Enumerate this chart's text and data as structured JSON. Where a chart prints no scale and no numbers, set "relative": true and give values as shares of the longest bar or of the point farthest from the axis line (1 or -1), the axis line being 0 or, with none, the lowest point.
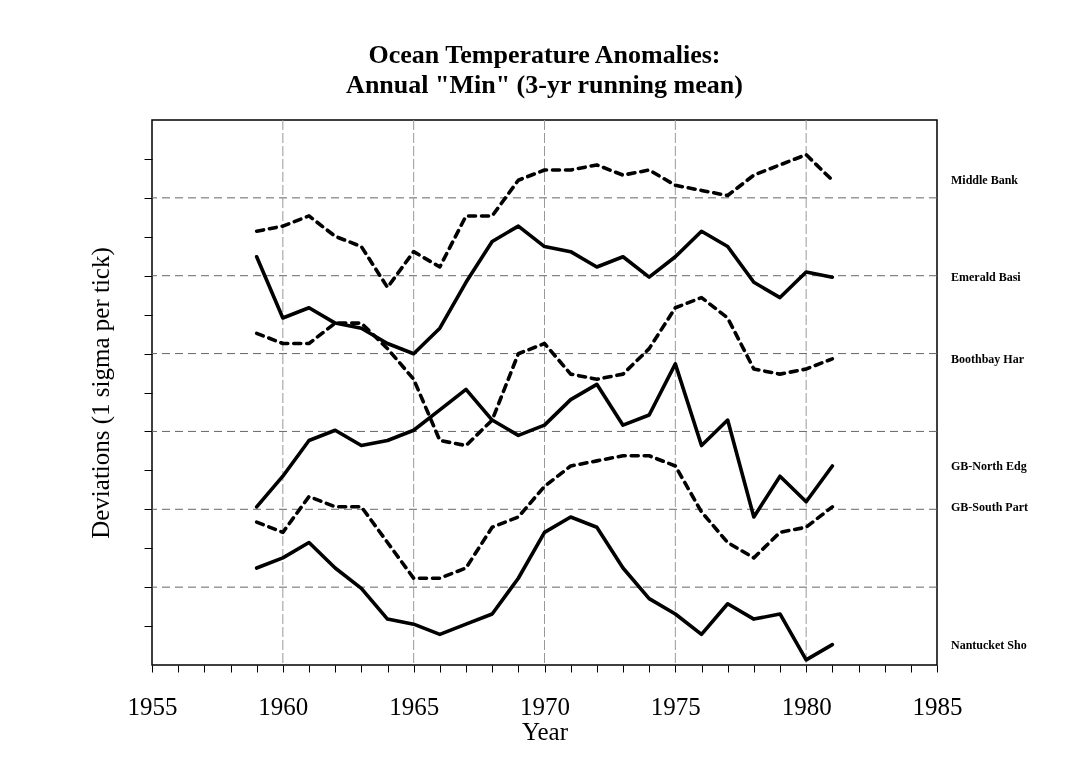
{
  "chart_data": {
    "type": "line",
    "title": "Ocean Temperature Anomalies:\nAnnual \"Min\" (3-yr running mean)",
    "xlabel": "Year",
    "ylabel": "Deviations (1 sigma per tick)",
    "relative": true,
    "x": [
      1959,
      1960,
      1961,
      1962,
      1963,
      1964,
      1965,
      1966,
      1967,
      1968,
      1969,
      1970,
      1971,
      1972,
      1973,
      1974,
      1975,
      1976,
      1977,
      1978,
      1979,
      1980,
      1981
    ],
    "xlim": [
      1955,
      1985
    ],
    "xticks": [
      1955,
      {
        "value": 1956,
        "label": null
      },
      {
        "value": 1957,
        "label": null
      },
      {
        "value": 1958,
        "label": null
      },
      {
        "value": 1959,
        "label": null
      },
      1960,
      {
        "value": 1961,
        "label": null
      },
      {
        "value": 1962,
        "label": null
      },
      {
        "value": 1963,
        "label": null
      },
      {
        "value": 1964,
        "label": null
      },
      1965,
      {
        "value": 1966,
        "label": null
      },
      {
        "value": 1967,
        "label": null
      },
      {
        "value": 1968,
        "label": null
      },
      {
        "value": 1969,
        "label": null
      },
      1970,
      {
        "value": 1971,
        "label": null
      },
      {
        "value": 1972,
        "label": null
      },
      {
        "value": 1973,
        "label": null
      },
      {
        "value": 1974,
        "label": null
      },
      1975,
      {
        "value": 1976,
        "label": null
      },
      {
        "value": 1977,
        "label": null
      },
      {
        "value": 1978,
        "label": null
      },
      {
        "value": 1979,
        "label": null
      },
      1980,
      {
        "value": 1981,
        "label": null
      },
      {
        "value": 1982,
        "label": null
      },
      {
        "value": 1983,
        "label": null
      },
      {
        "value": 1984,
        "label": null
      },
      1985
    ],
    "grid": true,
    "series": [
      {
        "name": "Middle Bank",
        "color": "#000000",
        "line_style": "dashed",
        "values": [
          0.85,
          0.86,
          0.88,
          0.84,
          0.82,
          0.74,
          0.81,
          0.78,
          0.88,
          0.88,
          0.95,
          0.97,
          0.97,
          0.98,
          0.96,
          0.97,
          0.94,
          0.93,
          0.92,
          0.96,
          0.98,
          1.0,
          0.95
        ]
      },
      {
        "name": "Emerald Basi",
        "color": "#000000",
        "line_style": "solid",
        "values": [
          0.8,
          0.68,
          0.7,
          0.67,
          0.66,
          0.63,
          0.61,
          0.66,
          0.75,
          0.83,
          0.86,
          0.82,
          0.81,
          0.78,
          0.8,
          0.76,
          0.8,
          0.85,
          0.82,
          0.75,
          0.72,
          0.77,
          0.76
        ]
      },
      {
        "name": "Boothbay Har",
        "color": "#000000",
        "line_style": "dashed",
        "values": [
          0.65,
          0.63,
          0.63,
          0.67,
          0.67,
          0.62,
          0.56,
          0.44,
          0.43,
          0.48,
          0.61,
          0.63,
          0.57,
          0.56,
          0.57,
          0.62,
          0.7,
          0.72,
          0.68,
          0.58,
          0.57,
          0.58,
          0.6
        ]
      },
      {
        "name": "GB-North Edg",
        "color": "#000000",
        "line_style": "solid",
        "values": [
          0.31,
          0.37,
          0.44,
          0.46,
          0.43,
          0.44,
          0.46,
          0.5,
          0.54,
          0.48,
          0.45,
          0.47,
          0.52,
          0.55,
          0.47,
          0.49,
          0.59,
          0.43,
          0.48,
          0.29,
          0.37,
          0.32,
          0.39
        ]
      },
      {
        "name": "GB-South Part",
        "color": "#000000",
        "line_style": "dashed",
        "values": [
          0.28,
          0.26,
          0.33,
          0.31,
          0.31,
          0.24,
          0.17,
          0.17,
          0.19,
          0.27,
          0.29,
          0.35,
          0.39,
          0.4,
          0.41,
          0.41,
          0.39,
          0.3,
          0.24,
          0.21,
          0.26,
          0.27,
          0.31
        ]
      },
      {
        "name": "Nantucket Sho",
        "color": "#000000",
        "line_style": "solid",
        "values": [
          0.19,
          0.21,
          0.24,
          0.19,
          0.15,
          0.09,
          0.08,
          0.06,
          0.08,
          0.1,
          0.17,
          0.26,
          0.29,
          0.27,
          0.19,
          0.13,
          0.1,
          0.06,
          0.12,
          0.09,
          0.1,
          0.01,
          0.04
        ]
      }
    ]
  }
}
